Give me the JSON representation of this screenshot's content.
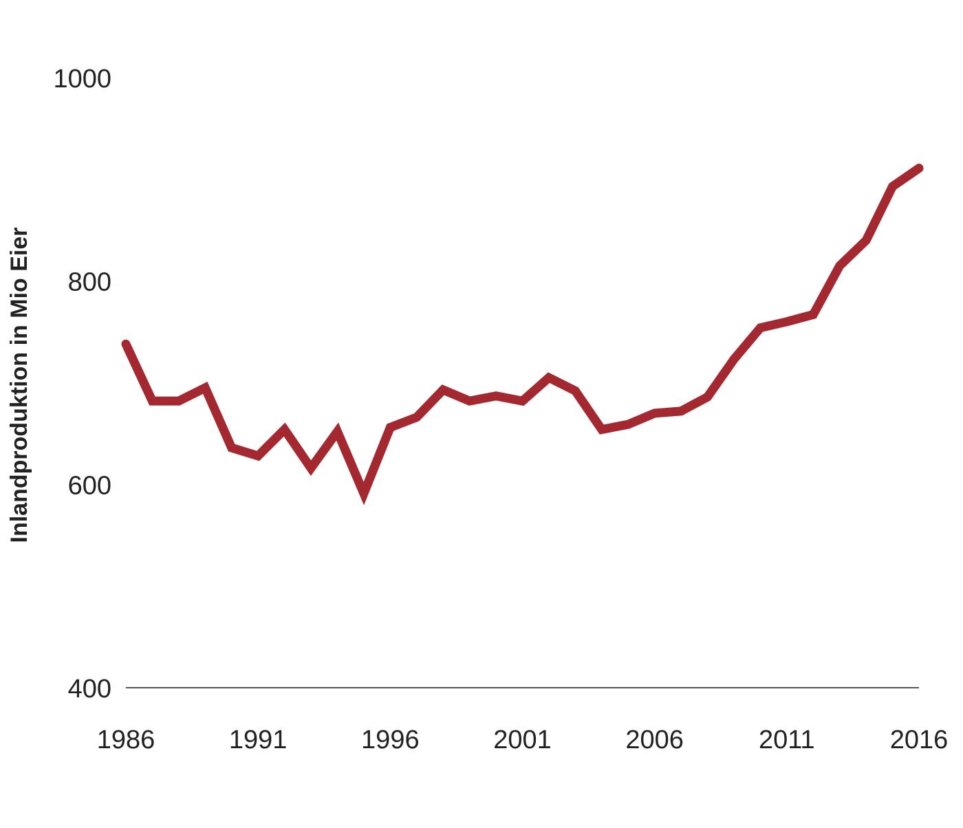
{
  "chart_data": {
    "type": "line",
    "y_label": "Inlandproduktion in Mio Eier",
    "x": [
      1986,
      1987,
      1988,
      1989,
      1990,
      1991,
      1992,
      1993,
      1994,
      1995,
      1996,
      1997,
      1998,
      1999,
      2000,
      2001,
      2002,
      2003,
      2004,
      2005,
      2006,
      2007,
      2008,
      2009,
      2010,
      2011,
      2012,
      2013,
      2014,
      2015,
      2016
    ],
    "series": [
      {
        "color": "#a3282f",
        "values": [
          738,
          682,
          682,
          695,
          636,
          628,
          654,
          616,
          652,
          591,
          656,
          666,
          693,
          682,
          687,
          682,
          705,
          692,
          654,
          659,
          670,
          672,
          686,
          723,
          754,
          760,
          767,
          815,
          840,
          893,
          911
        ]
      }
    ],
    "xlim": [
      1986,
      2016
    ],
    "xticks": [
      1986,
      1991,
      1996,
      2001,
      2006,
      2011,
      2016
    ],
    "ylim": [
      400,
      1000
    ],
    "yticks": [
      400,
      600,
      800,
      1000
    ],
    "grid": false
  }
}
